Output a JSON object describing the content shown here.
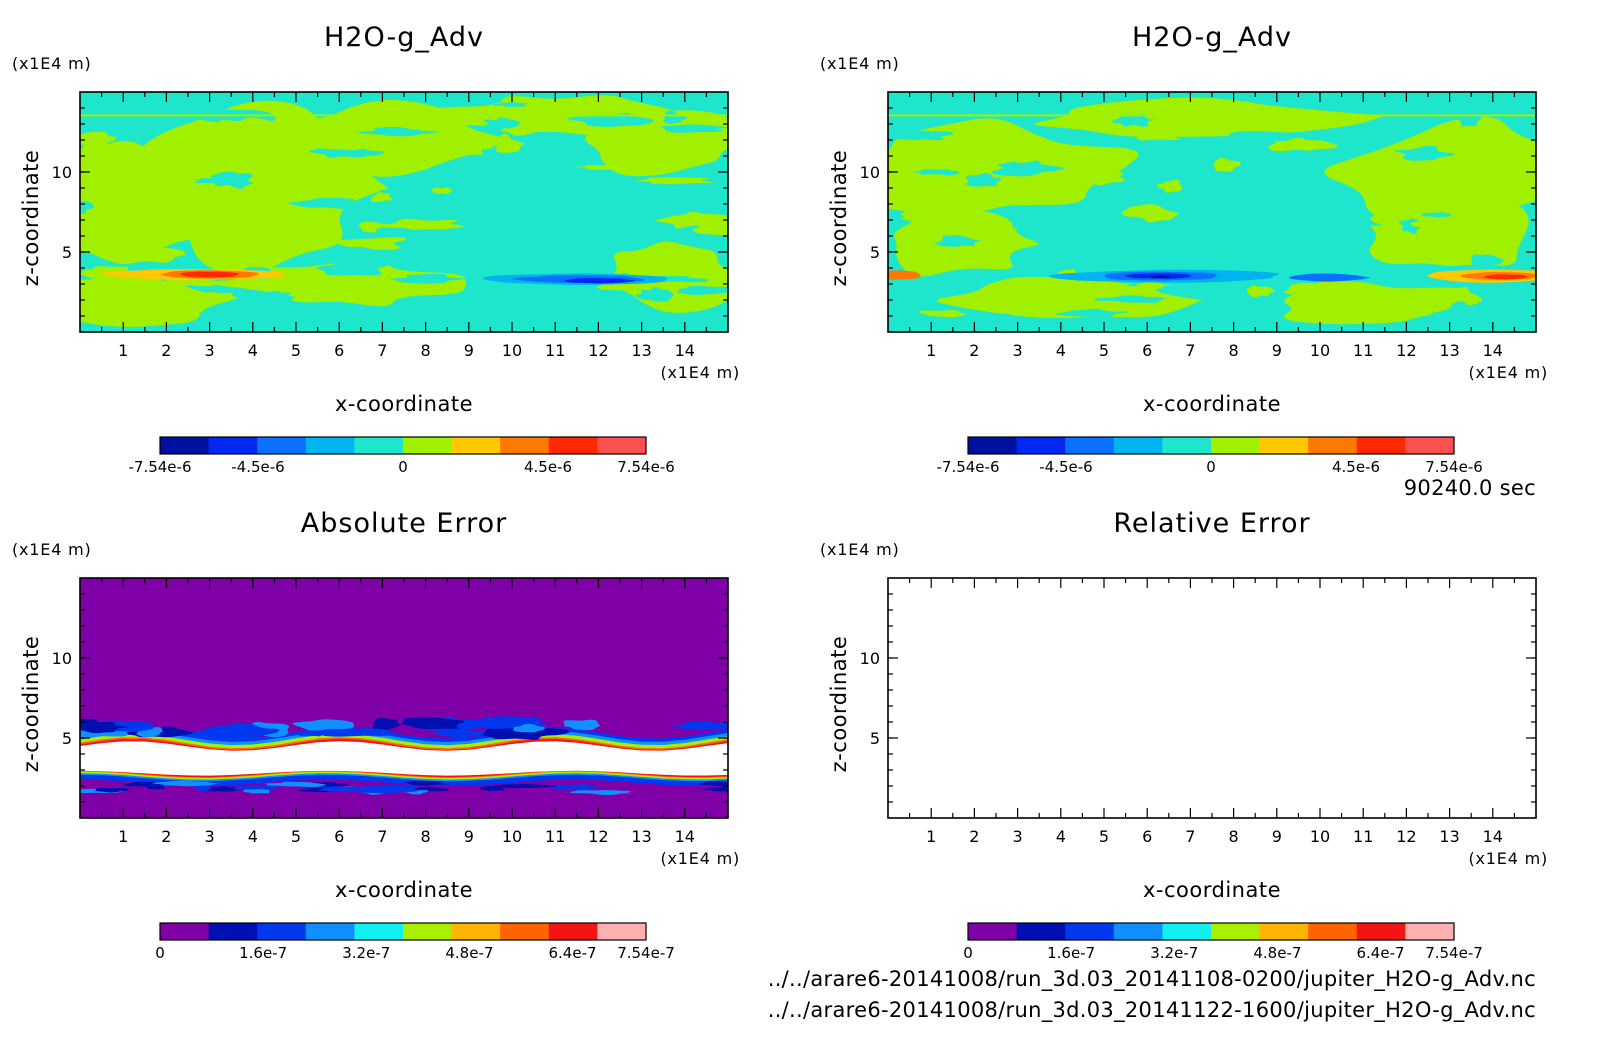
{
  "colors": {
    "adv_levels": [
      "#0010a0",
      "#0028f0",
      "#0a70ff",
      "#00b4f0",
      "#1ee6cc",
      "#a0f000",
      "#ffc800",
      "#ff7800",
      "#ff2800",
      "#ff5050"
    ],
    "err_levels": [
      "#8000a8",
      "#0010b0",
      "#0038f0",
      "#1090ff",
      "#10f0f0",
      "#a8f000",
      "#ffb400",
      "#ff6400",
      "#f51414",
      "#ffb0b0"
    ],
    "saturation": "#ffffff"
  },
  "footer": {
    "time": "90240.0 sec",
    "file1": "../../arare6-20141008/run_3d.03_20141108-0200/jupiter_H2O-g_Adv.nc",
    "file2": "../../arare6-20141008/run_3d.03_20141122-1600/jupiter_H2O-g_Adv.nc"
  },
  "chart_data": [
    {
      "type": "heatmap",
      "title": "H2O-g_Adv",
      "xlabel": "x-coordinate",
      "ylabel": "z-coordinate",
      "x_unit": "(x1E4 m)",
      "y_unit": "(x1E4 m)",
      "xlim": [
        0,
        15
      ],
      "ylim": [
        0,
        15
      ],
      "x_ticks": [
        "1",
        "2",
        "3",
        "4",
        "5",
        "6",
        "7",
        "8",
        "9",
        "10",
        "11",
        "12",
        "13",
        "14"
      ],
      "y_ticks": [
        "5",
        "10"
      ],
      "colorbar": {
        "range": [
          -7.54e-06,
          7.54e-06
        ],
        "levels": 10,
        "tick_labels": [
          {
            "value": -7.54e-06,
            "text": "-7.54e-6"
          },
          {
            "value": -4.5e-06,
            "text": "-4.5e-6"
          },
          {
            "value": 0,
            "text": "0"
          },
          {
            "value": 4.5e-06,
            "text": "4.5e-6"
          },
          {
            "value": 7.54e-06,
            "text": "7.54e-6"
          }
        ]
      },
      "background_value": 0,
      "features": [
        {
          "x": 3.0,
          "z": 3.6,
          "value": 6.5e-06
        },
        {
          "x": 2.0,
          "z": 3.5,
          "value": 2.5e-06
        },
        {
          "x": 12.0,
          "z": 3.2,
          "value": -6e-06
        },
        {
          "x": 11.0,
          "z": 3.3,
          "value": -3.5e-06
        }
      ]
    },
    {
      "type": "heatmap",
      "title": "H2O-g_Adv",
      "xlabel": "x-coordinate",
      "ylabel": "z-coordinate",
      "x_unit": "(x1E4 m)",
      "y_unit": "(x1E4 m)",
      "xlim": [
        0,
        15
      ],
      "ylim": [
        0,
        15
      ],
      "x_ticks": [
        "1",
        "2",
        "3",
        "4",
        "5",
        "6",
        "7",
        "8",
        "9",
        "10",
        "11",
        "12",
        "13",
        "14"
      ],
      "y_ticks": [
        "5",
        "10"
      ],
      "colorbar": {
        "range": [
          -7.54e-06,
          7.54e-06
        ],
        "levels": 10,
        "tick_labels": [
          {
            "value": -7.54e-06,
            "text": "-7.54e-6"
          },
          {
            "value": -4.5e-06,
            "text": "-4.5e-6"
          },
          {
            "value": 0,
            "text": "0"
          },
          {
            "value": 4.5e-06,
            "text": "4.5e-6"
          },
          {
            "value": 7.54e-06,
            "text": "7.54e-6"
          }
        ]
      },
      "background_value": 0,
      "features": [
        {
          "x": 6.5,
          "z": 3.5,
          "value": -7e-06
        },
        {
          "x": 10.2,
          "z": 3.4,
          "value": -4e-06
        },
        {
          "x": 14.0,
          "z": 3.5,
          "value": 6.5e-06
        },
        {
          "x": 0.3,
          "z": 3.6,
          "value": 5e-06
        }
      ]
    },
    {
      "type": "heatmap",
      "title": "Absolute Error",
      "xlabel": "x-coordinate",
      "ylabel": "z-coordinate",
      "x_unit": "(x1E4 m)",
      "y_unit": "(x1E4 m)",
      "xlim": [
        0,
        15
      ],
      "ylim": [
        0,
        15
      ],
      "x_ticks": [
        "1",
        "2",
        "3",
        "4",
        "5",
        "6",
        "7",
        "8",
        "9",
        "10",
        "11",
        "12",
        "13",
        "14"
      ],
      "y_ticks": [
        "5",
        "10"
      ],
      "colorbar": {
        "range": [
          0,
          7.54e-07
        ],
        "levels": 10,
        "tick_labels": [
          {
            "value": 0,
            "text": "0"
          },
          {
            "value": 1.6e-07,
            "text": "1.6e-7"
          },
          {
            "value": 3.2e-07,
            "text": "3.2e-7"
          },
          {
            "value": 4.8e-07,
            "text": "4.8e-7"
          },
          {
            "value": 6.4e-07,
            "text": "6.4e-7"
          },
          {
            "value": 7.54e-07,
            "text": "7.54e-7"
          }
        ]
      },
      "background_value": 0,
      "saturated_band_z": [
        2.8,
        4.5
      ]
    },
    {
      "type": "heatmap",
      "title": "Relative Error",
      "xlabel": "x-coordinate",
      "ylabel": "z-coordinate",
      "x_unit": "(x1E4 m)",
      "y_unit": "(x1E4 m)",
      "xlim": [
        0,
        15
      ],
      "ylim": [
        0,
        15
      ],
      "x_ticks": [
        "1",
        "2",
        "3",
        "4",
        "5",
        "6",
        "7",
        "8",
        "9",
        "10",
        "11",
        "12",
        "13",
        "14"
      ],
      "y_ticks": [
        "5",
        "10"
      ],
      "colorbar": {
        "range": [
          0,
          7.54e-07
        ],
        "levels": 10,
        "tick_labels": [
          {
            "value": 0,
            "text": "0"
          },
          {
            "value": 1.6e-07,
            "text": "1.6e-7"
          },
          {
            "value": 3.2e-07,
            "text": "3.2e-7"
          },
          {
            "value": 4.8e-07,
            "text": "4.8e-7"
          },
          {
            "value": 6.4e-07,
            "text": "6.4e-7"
          },
          {
            "value": 7.54e-07,
            "text": "7.54e-7"
          }
        ]
      },
      "field_empty": true
    }
  ]
}
